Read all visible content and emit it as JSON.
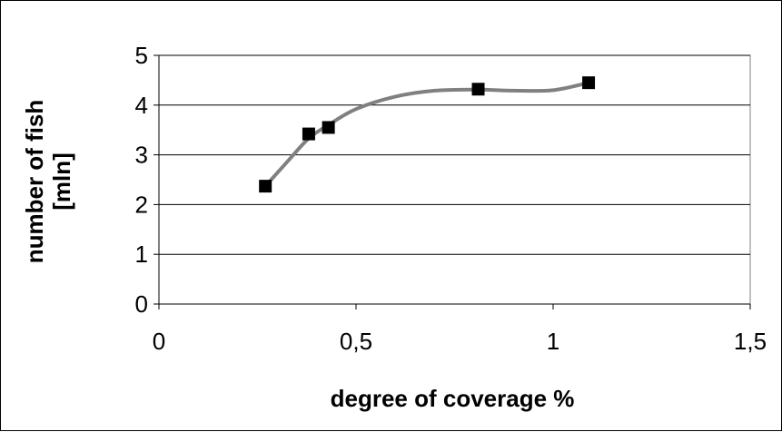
{
  "chart_data": {
    "type": "scatter",
    "title": "",
    "xlabel": "degree of coverage %",
    "ylabel_lines": [
      "number of fish",
      "[mln]"
    ],
    "xlim": [
      0,
      1.5
    ],
    "ylim": [
      0,
      5
    ],
    "x_ticks": [
      0,
      0.5,
      1,
      1.5
    ],
    "x_tick_labels": [
      "0",
      "0,5",
      "1",
      "1,5"
    ],
    "y_ticks": [
      0,
      1,
      2,
      3,
      4,
      5
    ],
    "y_tick_labels": [
      "0",
      "1",
      "2",
      "3",
      "4",
      "5"
    ],
    "grid": "horizontal",
    "legend": "none",
    "series": [
      {
        "points": [
          {
            "x": 0.27,
            "y": 2.37
          },
          {
            "x": 0.38,
            "y": 3.42
          },
          {
            "x": 0.43,
            "y": 3.55
          },
          {
            "x": 0.81,
            "y": 4.32
          },
          {
            "x": 1.09,
            "y": 4.45
          }
        ],
        "marker": "square",
        "marker_color": "#000000"
      }
    ],
    "trendline": {
      "type": "polynomial",
      "color": "#808080",
      "points": [
        {
          "x": 0.27,
          "y": 2.37
        },
        {
          "x": 0.33,
          "y": 2.9
        },
        {
          "x": 0.38,
          "y": 3.33
        },
        {
          "x": 0.43,
          "y": 3.6
        },
        {
          "x": 0.5,
          "y": 3.92
        },
        {
          "x": 0.6,
          "y": 4.17
        },
        {
          "x": 0.7,
          "y": 4.29
        },
        {
          "x": 0.81,
          "y": 4.31
        },
        {
          "x": 0.9,
          "y": 4.29
        },
        {
          "x": 1.0,
          "y": 4.3
        },
        {
          "x": 1.09,
          "y": 4.45
        }
      ]
    }
  }
}
